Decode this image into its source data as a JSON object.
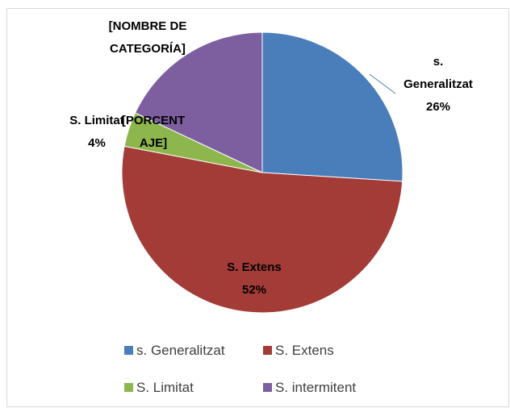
{
  "chart_data": {
    "type": "pie",
    "categories": [
      "s. Generalitzat",
      "S. Extens",
      "S. Limitat",
      "S. intermitent"
    ],
    "values": [
      26,
      52,
      4,
      18
    ],
    "value_labels": [
      "26%",
      "52%",
      "4%",
      null
    ],
    "colors": [
      "#4a7ebb",
      "#a33b37",
      "#8db64d",
      "#7d5fa0"
    ],
    "placeholder_label": {
      "name": "[NOMBRE DE CATEGORÍA]",
      "value": "[PORCENTAJE]"
    },
    "legend": "bottom"
  }
}
